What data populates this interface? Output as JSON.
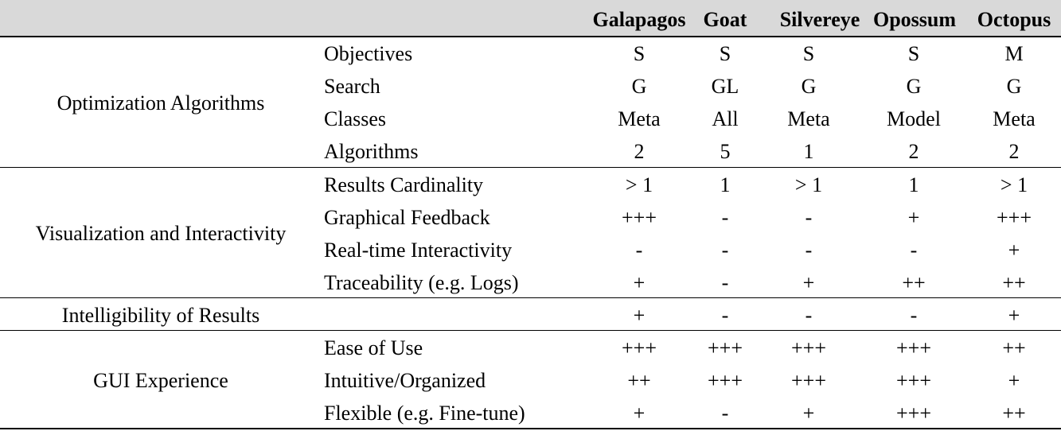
{
  "table": {
    "tools": [
      "Galapagos",
      "Goat",
      "Silvereye",
      "Opossum",
      "Octopus"
    ],
    "groups": [
      {
        "category": "Optimization Algorithms",
        "rows": [
          {
            "criterion": "Objectives",
            "values": [
              "S",
              "S",
              "S",
              "S",
              "M"
            ]
          },
          {
            "criterion": "Search",
            "values": [
              "G",
              "GL",
              "G",
              "G",
              "G"
            ]
          },
          {
            "criterion": "Classes",
            "values": [
              "Meta",
              "All",
              "Meta",
              "Model",
              "Meta"
            ]
          },
          {
            "criterion": "Algorithms",
            "values": [
              "2",
              "5",
              "1",
              "2",
              "2"
            ]
          }
        ]
      },
      {
        "category": "Visualization and Interactivity",
        "rows": [
          {
            "criterion": "Results Cardinality",
            "values": [
              "> 1",
              "1",
              "> 1",
              "1",
              "> 1"
            ]
          },
          {
            "criterion": "Graphical Feedback",
            "values": [
              "+++",
              "-",
              "-",
              "+",
              "+++"
            ]
          },
          {
            "criterion": "Real-time Interactivity",
            "values": [
              "-",
              "-",
              "-",
              "-",
              "+"
            ]
          },
          {
            "criterion": "Traceability (e.g. Logs)",
            "values": [
              "+",
              "-",
              "+",
              "++",
              "++"
            ]
          }
        ]
      },
      {
        "category": "Intelligibility of Results",
        "rows": [
          {
            "criterion": "",
            "values": [
              "+",
              "-",
              "-",
              "-",
              "+"
            ]
          }
        ]
      },
      {
        "category": "GUI Experience",
        "rows": [
          {
            "criterion": "Ease of Use",
            "values": [
              "+++",
              "+++",
              "+++",
              "+++",
              "++"
            ]
          },
          {
            "criterion": "Intuitive/Organized",
            "values": [
              "++",
              "+++",
              "+++",
              "+++",
              "+"
            ]
          },
          {
            "criterion": "Flexible (e.g. Fine-tune)",
            "values": [
              "+",
              "-",
              "+",
              "+++",
              "++"
            ]
          }
        ]
      }
    ]
  }
}
